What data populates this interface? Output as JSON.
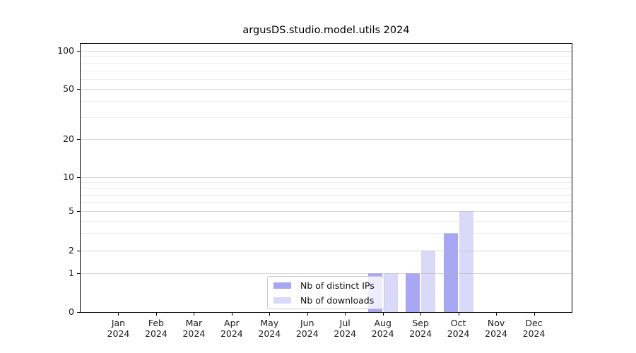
{
  "chart_data": {
    "type": "bar",
    "title": "argusDS.studio.model.utils 2024",
    "y_scale": "asinh-like (linear 0-1, log above)",
    "categories": [
      "Jan",
      "Feb",
      "Mar",
      "Apr",
      "May",
      "Jun",
      "Jul",
      "Aug",
      "Sep",
      "Oct",
      "Nov",
      "Dec"
    ],
    "category_year": "2024",
    "series": [
      {
        "name": "Nb of distinct IPs",
        "color": "#a7a7f4",
        "values": [
          0,
          0,
          0,
          0,
          0,
          0,
          0,
          1,
          1,
          3,
          0,
          0
        ]
      },
      {
        "name": "Nb of downloads",
        "color": "#d9d9fa",
        "values": [
          0,
          0,
          0,
          0,
          0,
          0,
          0,
          1,
          2,
          5,
          0,
          0
        ]
      }
    ],
    "y_ticks": [
      0,
      1,
      2,
      5,
      10,
      20,
      50,
      100
    ],
    "y_minor_gridlines": [
      3,
      4,
      6,
      7,
      8,
      9,
      30,
      40,
      60,
      70,
      80,
      90
    ],
    "ylim": [
      0,
      100
    ],
    "grid": true,
    "legend_position": "lower center",
    "colors": {
      "grid_major": "rgba(180,180,180,0.55)",
      "grid_minor": "rgba(222,222,222,0.55)",
      "spine": "#000000",
      "background": "#ffffff"
    }
  }
}
